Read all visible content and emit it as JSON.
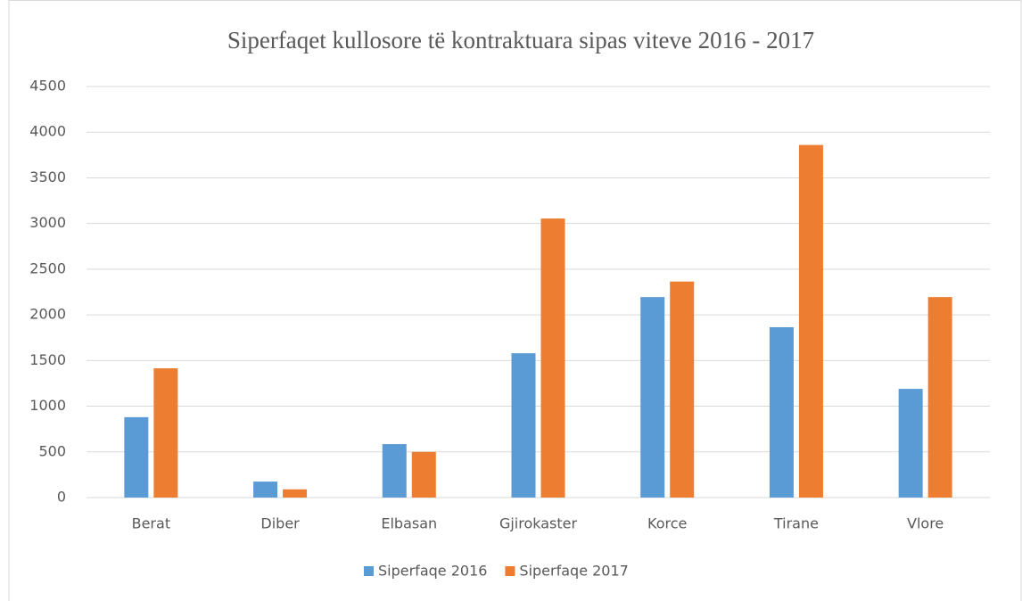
{
  "chart_data": {
    "type": "bar",
    "title": "Siperfaqet kullosore të kontraktuara sipas viteve 2016 - 2017",
    "categories": [
      "Berat",
      "Diber",
      "Elbasan",
      "Gjirokaster",
      "Korce",
      "Tirane",
      "Vlore"
    ],
    "series": [
      {
        "name": "Siperfaqe 2016",
        "color": "#5b9bd5",
        "values": [
          880,
          175,
          585,
          1580,
          2195,
          1865,
          1190
        ]
      },
      {
        "name": "Siperfaqe 2017",
        "color": "#ed7d31",
        "values": [
          1415,
          90,
          500,
          3055,
          2365,
          3860,
          2195
        ]
      }
    ],
    "ylim": [
      0,
      4500
    ],
    "yticks": [
      0,
      500,
      1000,
      1500,
      2000,
      2500,
      3000,
      3500,
      4000,
      4500
    ],
    "grid": true,
    "legend": "bottom"
  }
}
